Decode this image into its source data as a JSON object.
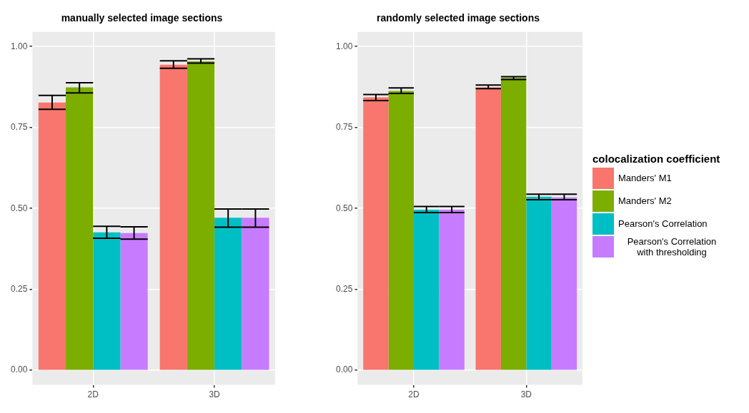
{
  "chart_data": [
    {
      "type": "bar",
      "title": "manually selected image sections",
      "categories": [
        "2D",
        "3D"
      ],
      "ylim": [
        -0.045,
        1.045
      ],
      "yticks": [
        {
          "value": 0,
          "label": "0.00"
        },
        {
          "value": 0.25,
          "label": "0.25"
        },
        {
          "value": 0.5,
          "label": "0.50"
        },
        {
          "value": 0.75,
          "label": "0.75"
        },
        {
          "value": 1,
          "label": "1.00"
        }
      ],
      "grid": true,
      "legend": false,
      "series": [
        {
          "color": "#f8766d",
          "values": [
            0.827,
            0.944
          ],
          "errors": [
            [
              0.806,
              0.849
            ],
            [
              0.933,
              0.956
            ]
          ]
        },
        {
          "color": "#7cae00",
          "values": [
            0.874,
            0.954
          ],
          "errors": [
            [
              0.857,
              0.888
            ],
            [
              0.949,
              0.962
            ]
          ]
        },
        {
          "color": "#00bfc4",
          "values": [
            0.426,
            0.471
          ],
          "errors": [
            [
              0.408,
              0.445
            ],
            [
              0.442,
              0.498
            ]
          ]
        },
        {
          "color": "#c77cff",
          "values": [
            0.424,
            0.471
          ],
          "errors": [
            [
              0.405,
              0.443
            ],
            [
              0.442,
              0.498
            ]
          ]
        }
      ]
    },
    {
      "type": "bar",
      "title": "randomly selected image sections",
      "categories": [
        "2D",
        "3D"
      ],
      "ylim": [
        -0.045,
        1.045
      ],
      "yticks": [
        {
          "value": 0,
          "label": "0.00"
        },
        {
          "value": 0.25,
          "label": "0.25"
        },
        {
          "value": 0.5,
          "label": "0.50"
        },
        {
          "value": 0.75,
          "label": "0.75"
        },
        {
          "value": 1,
          "label": "1.00"
        }
      ],
      "grid": true,
      "legend": "right",
      "legend_title": "colocalization coefficient",
      "series": [
        {
          "name": "Manders' M1",
          "color": "#f8766d",
          "values": [
            0.843,
            0.874
          ],
          "errors": [
            [
              0.833,
              0.852
            ],
            [
              0.87,
              0.881
            ]
          ]
        },
        {
          "name": "Manders' M2",
          "color": "#7cae00",
          "values": [
            0.863,
            0.903
          ],
          "errors": [
            [
              0.855,
              0.872
            ],
            [
              0.898,
              0.907
            ]
          ]
        },
        {
          "name": "Pearson's Correlation",
          "color": "#00bfc4",
          "values": [
            0.496,
            0.536
          ],
          "errors": [
            [
              0.487,
              0.506
            ],
            [
              0.527,
              0.544
            ]
          ]
        },
        {
          "name": "Pearson's Correlation with thresholding",
          "color": "#c77cff",
          "values": [
            0.496,
            0.534
          ],
          "errors": [
            [
              0.487,
              0.506
            ],
            [
              0.527,
              0.544
            ]
          ]
        }
      ]
    }
  ]
}
